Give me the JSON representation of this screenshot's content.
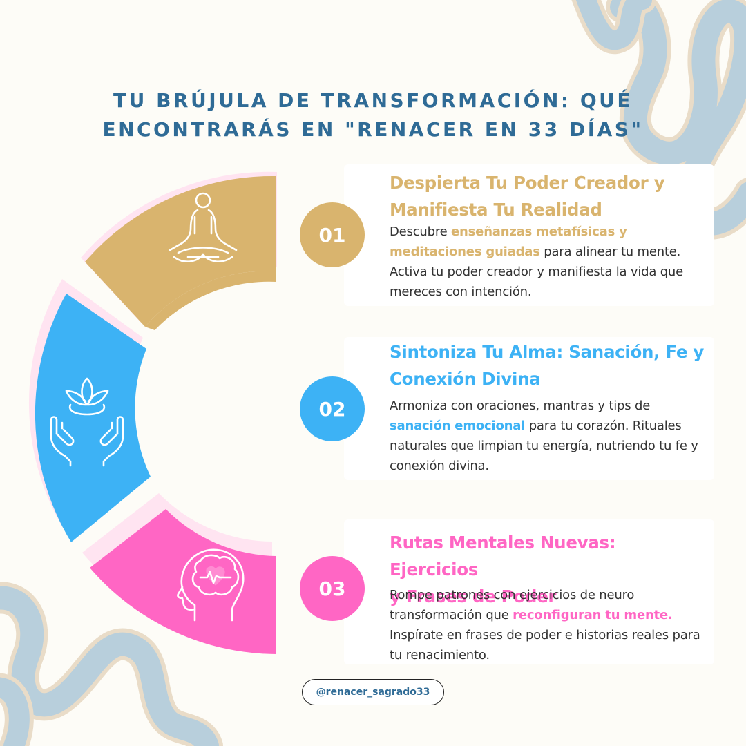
{
  "title": {
    "line1": "TU BRÚJULA DE TRANSFORMACIÓN: QUÉ",
    "line2": "ENCONTRARÁS EN \"RENACER EN 33 DÍAS\""
  },
  "colors": {
    "background": "#fdfcf7",
    "title": "#2f6b96",
    "gold": "#d9b46e",
    "blue": "#3db2f5",
    "pink": "#ff66c4",
    "deco_squiggle": "#b8cfdc"
  },
  "sections": [
    {
      "number": "01",
      "title_line1": "Despierta Tu Poder Creador y",
      "title_line2": "Manifiesta Tu Realidad",
      "desc_before": "Descubre ",
      "desc_highlight": "enseñanzas metafísicas y meditaciones guiadas",
      "desc_after": " para alinear tu mente. Activa tu poder creador y manifiesta la vida que mereces con intención.",
      "icon": "meditation-icon",
      "color": "#d9b46e"
    },
    {
      "number": "02",
      "title_line1": "Sintoniza Tu Alma: Sanación, Fe y",
      "title_line2": "Conexión Divina",
      "desc_before": "Armoniza con oraciones, mantras y tips de ",
      "desc_highlight": "sanación emocional",
      "desc_after": " para tu corazón. Rituales naturales que limpian tu energía, nutriendo tu fe y conexión divina.",
      "icon": "hands-lotus-icon",
      "color": "#3db2f5"
    },
    {
      "number": "03",
      "title_line1": "Rutas Mentales Nuevas: Ejercicios",
      "title_line2": "y Frases de Poder",
      "desc_before": "Rompe patrones con ejercicios de neuro transformación que ",
      "desc_highlight": "reconfiguran tu mente.",
      "desc_after": " Inspírate en frases de poder e historias reales para tu renacimiento.",
      "icon": "head-brain-icon",
      "color": "#ff66c4"
    }
  ],
  "footer": {
    "handle": "@renacer_sagrado33"
  }
}
